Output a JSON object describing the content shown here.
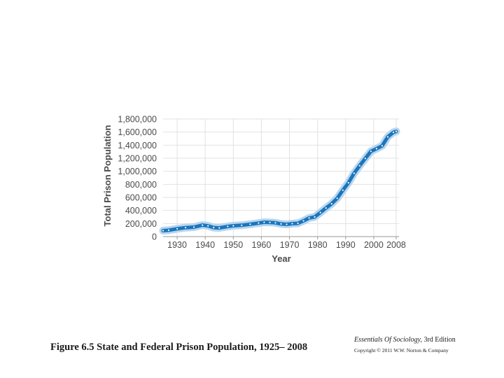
{
  "chart_data": {
    "type": "line",
    "title": "",
    "xlabel": "Year",
    "ylabel": "Total Prison Population",
    "xlim": [
      1925,
      2009
    ],
    "ylim": [
      0,
      1800000
    ],
    "x_ticks": [
      1930,
      1940,
      1950,
      1960,
      1970,
      1980,
      1990,
      2000,
      2008
    ],
    "x_tick_labels": [
      "1930",
      "1940",
      "1950",
      "1960",
      "1970",
      "1980",
      "1990",
      "2000",
      "2008"
    ],
    "y_ticks": [
      0,
      200000,
      400000,
      600000,
      800000,
      1000000,
      1200000,
      1400000,
      1600000,
      1800000
    ],
    "y_tick_labels": [
      "0",
      "200,000",
      "400,000",
      "600,000",
      "800,000",
      "1,000,000",
      "1,200,000",
      "1,400,000",
      "1,600,000",
      "1,800,000"
    ],
    "grid": true,
    "series": [
      {
        "name": "Total Prison Population",
        "color": "#1b75bb",
        "x": [
          1925,
          1927,
          1930,
          1933,
          1936,
          1939,
          1941,
          1943,
          1945,
          1948,
          1950,
          1953,
          1956,
          1959,
          1961,
          1963,
          1965,
          1967,
          1969,
          1971,
          1973,
          1975,
          1977,
          1979,
          1981,
          1983,
          1985,
          1987,
          1989,
          1991,
          1993,
          1995,
          1997,
          1999,
          2001,
          2003,
          2005,
          2007,
          2008
        ],
        "values": [
          91000,
          98000,
          120000,
          137000,
          145000,
          176000,
          165000,
          138000,
          133000,
          155000,
          166000,
          174000,
          189000,
          207000,
          220000,
          218000,
          211000,
          194000,
          188000,
          198000,
          204000,
          241000,
          285000,
          301000,
          369000,
          437000,
          502000,
          586000,
          710000,
          824000,
          970000,
          1085000,
          1197000,
          1305000,
          1346000,
          1390000,
          1527000,
          1596000,
          1610000
        ]
      }
    ]
  },
  "caption": "Figure 6.5 State and Federal Prison  Population,  1925– 2008",
  "source": {
    "book_title": "Essentials Of Sociology,",
    "edition": "3rd Edition",
    "copyright": "Copyright © 2011  W.W. Norton & Company"
  }
}
